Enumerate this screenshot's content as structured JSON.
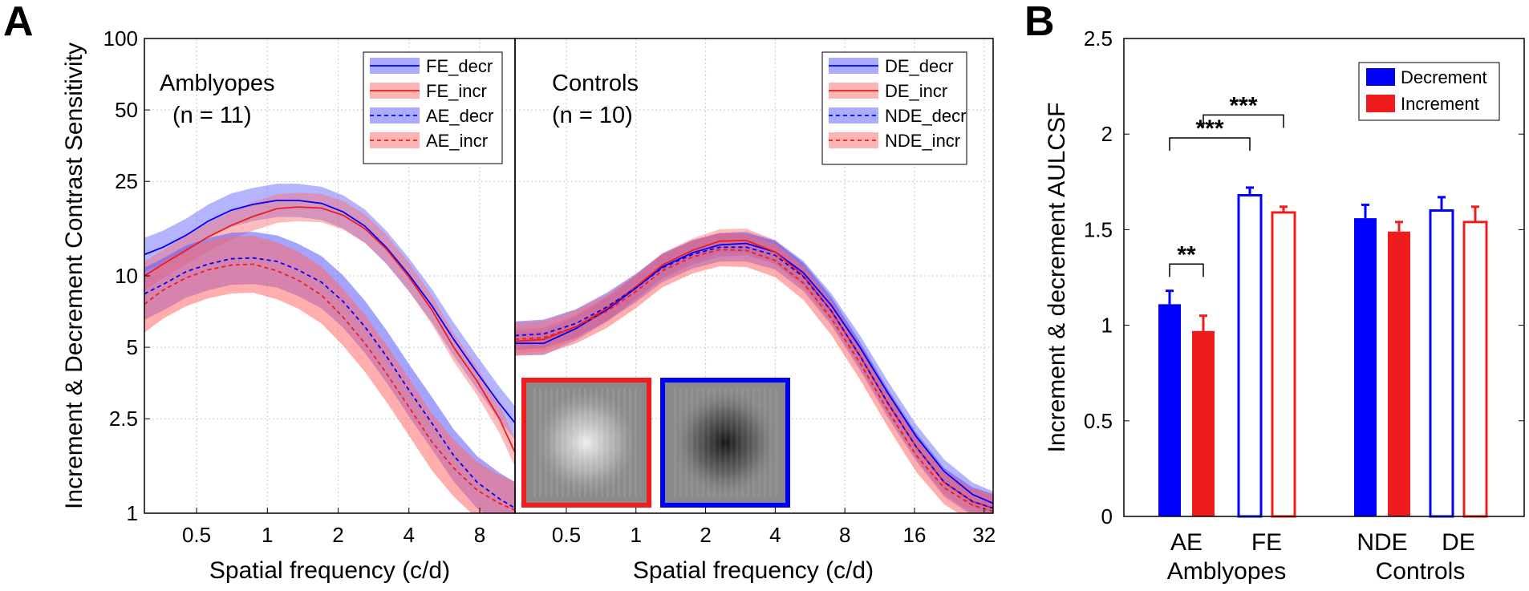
{
  "panel_labels": [
    "A",
    "B"
  ],
  "colors": {
    "blue": "#0000ff",
    "blue_band": "#5a5aff",
    "red": "#ee1c1c",
    "red_band": "#ff6a6a",
    "grid": "#c8c8c8",
    "axis": "#000000"
  },
  "chart_data": [
    {
      "type": "line",
      "title": "Amblyopes",
      "subtitle": "(n = 11)",
      "xlabel": "Spatial frequency (c/d)",
      "ylabel": "Increment & Decrement Contrast Sensitivity",
      "xscale": "log",
      "yscale": "log",
      "xlim": [
        0.3,
        11.3
      ],
      "ylim": [
        1,
        100
      ],
      "xticks": [
        0.5,
        1,
        2,
        4,
        8
      ],
      "xticklabels": [
        "0.5",
        "1",
        "2",
        "4",
        "8"
      ],
      "yticks": [
        1,
        2.5,
        5,
        10,
        25,
        50,
        100
      ],
      "yticklabels": [
        "1",
        "2.5",
        "5",
        "10",
        "25",
        "50",
        "100"
      ],
      "grid": true,
      "legend_position": "top-right",
      "x": [
        0.3,
        0.36,
        0.45,
        0.56,
        0.7,
        0.87,
        1.1,
        1.35,
        1.7,
        2.1,
        2.6,
        3.2,
        4.0,
        5.0,
        6.2,
        7.8,
        9.7,
        11.3
      ],
      "series": [
        {
          "name": "FE_decr",
          "style": "solid",
          "color": "blue",
          "values": [
            12.3,
            13.2,
            14.8,
            17.0,
            18.9,
            20.0,
            20.8,
            20.8,
            20.2,
            18.6,
            16.2,
            13.2,
            10.1,
            7.5,
            5.4,
            3.9,
            2.9,
            2.4
          ],
          "band": 0.07
        },
        {
          "name": "FE_incr",
          "style": "solid",
          "color": "red",
          "values": [
            10.0,
            11.2,
            12.8,
            14.6,
            16.3,
            17.8,
            19.2,
            19.5,
            19.3,
            18.0,
            15.8,
            13.0,
            9.9,
            7.2,
            5.0,
            3.6,
            2.5,
            1.8
          ],
          "band": 0.06
        },
        {
          "name": "AE_decr",
          "style": "dashed",
          "color": "blue",
          "values": [
            8.4,
            9.2,
            10.4,
            11.2,
            11.8,
            11.9,
            11.5,
            10.6,
            9.4,
            7.8,
            6.1,
            4.6,
            3.3,
            2.4,
            1.75,
            1.35,
            1.15,
            1.05
          ],
          "band": 0.11
        },
        {
          "name": "AE_incr",
          "style": "dashed",
          "color": "red",
          "values": [
            7.6,
            8.7,
            9.8,
            10.6,
            11.1,
            11.2,
            10.5,
            9.6,
            8.3,
            6.7,
            5.2,
            3.9,
            2.8,
            2.0,
            1.55,
            1.25,
            1.1,
            1.03
          ],
          "band": 0.12
        }
      ]
    },
    {
      "type": "line",
      "title": "Controls",
      "subtitle": "(n = 10)",
      "xlabel": "Spatial frequency (c/d)",
      "xscale": "log",
      "yscale": "log",
      "xlim": [
        0.3,
        35
      ],
      "ylim": [
        1,
        100
      ],
      "xticks": [
        0.5,
        1,
        2,
        4,
        8,
        16,
        32
      ],
      "xticklabels": [
        "0.5",
        "1",
        "2",
        "4",
        "8",
        "16",
        "32"
      ],
      "grid": true,
      "legend_position": "top-right",
      "x": [
        0.3,
        0.4,
        0.55,
        0.75,
        1.0,
        1.3,
        1.75,
        2.3,
        3.0,
        4.0,
        5.3,
        7.0,
        9.3,
        12.3,
        16.3,
        21.5,
        28.5,
        35
      ],
      "series": [
        {
          "name": "DE_decr",
          "style": "solid",
          "color": "blue",
          "values": [
            5.2,
            5.2,
            6.0,
            7.2,
            8.9,
            10.9,
            12.5,
            13.5,
            13.7,
            12.6,
            10.3,
            7.5,
            5.0,
            3.2,
            2.1,
            1.5,
            1.2,
            1.1
          ],
          "band": 0.05
        },
        {
          "name": "DE_incr",
          "style": "solid",
          "color": "red",
          "values": [
            5.3,
            5.4,
            6.1,
            7.3,
            9.0,
            11.1,
            12.8,
            14.0,
            14.1,
            12.6,
            10.0,
            7.1,
            4.6,
            2.9,
            1.9,
            1.35,
            1.12,
            1.05
          ],
          "band": 0.05
        },
        {
          "name": "NDE_decr",
          "style": "dashed",
          "color": "blue",
          "values": [
            5.6,
            5.7,
            6.3,
            7.4,
            8.9,
            10.8,
            12.3,
            13.2,
            13.2,
            12.2,
            9.9,
            7.1,
            4.6,
            2.9,
            1.9,
            1.35,
            1.12,
            1.05
          ],
          "band": 0.06
        },
        {
          "name": "NDE_incr",
          "style": "dashed",
          "color": "red",
          "values": [
            5.4,
            5.5,
            6.1,
            7.1,
            8.6,
            10.5,
            12.0,
            12.9,
            12.8,
            11.6,
            9.3,
            6.6,
            4.3,
            2.7,
            1.75,
            1.28,
            1.08,
            1.02
          ],
          "band": 0.07
        }
      ]
    },
    {
      "type": "bar",
      "ylabel": "Increment & decrement AULCSF",
      "ylim": [
        0,
        2.5
      ],
      "yticks": [
        0,
        0.5,
        1,
        1.5,
        2,
        2.5
      ],
      "yticklabels": [
        "0",
        "0.5",
        "1",
        "1.5",
        "2",
        "2.5"
      ],
      "grid": false,
      "legend_position": "top-right",
      "categories": [
        "AE",
        "FE",
        "NDE",
        "DE"
      ],
      "groups": [
        "Amblyopes",
        "Controls"
      ],
      "series": [
        {
          "name": "Decrement",
          "color": "blue",
          "values": [
            1.11,
            1.68,
            1.56,
            1.6
          ],
          "errors": [
            0.07,
            0.04,
            0.07,
            0.07
          ],
          "filled": [
            true,
            false,
            true,
            false
          ]
        },
        {
          "name": "Increment",
          "color": "red",
          "values": [
            0.97,
            1.59,
            1.49,
            1.54
          ],
          "errors": [
            0.08,
            0.03,
            0.05,
            0.08
          ],
          "filled": [
            true,
            false,
            true,
            false
          ]
        }
      ],
      "significance": [
        {
          "label": "**",
          "from": "AE Decrement",
          "to": "AE Increment"
        },
        {
          "label": "***",
          "from": "AE Decrement",
          "to": "FE Decrement"
        },
        {
          "label": "***",
          "from": "AE Increment",
          "to": "FE Increment"
        }
      ]
    }
  ]
}
